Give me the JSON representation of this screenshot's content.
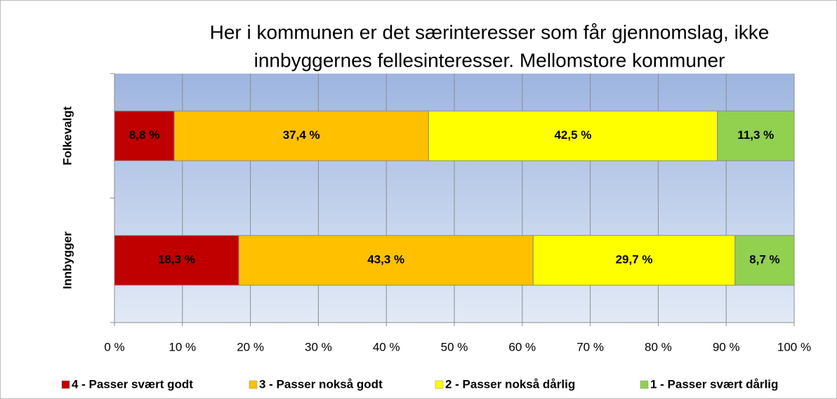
{
  "chart_data": {
    "type": "stacked-barh",
    "title": [
      "Her i kommunen er det særinteresser som får gjennomslag, ikke",
      "innbyggernes fellesinteresser. Mellomstore kommuner"
    ],
    "categories": [
      "Folkevalgt",
      "Innbygger"
    ],
    "series": [
      {
        "name": "4 - Passer svært godt",
        "color": "#c00000",
        "values": [
          8.8,
          18.3
        ],
        "value_labels": [
          "8,8 %",
          "18,3 %"
        ]
      },
      {
        "name": "3 - Passer nokså godt",
        "color": "#ffc000",
        "values": [
          37.4,
          43.3
        ],
        "value_labels": [
          "37,4 %",
          "43,3 %"
        ]
      },
      {
        "name": "2 - Passer nokså dårlig",
        "color": "#ffff00",
        "values": [
          42.5,
          29.7
        ],
        "value_labels": [
          "42,5 %",
          "29,7 %"
        ]
      },
      {
        "name": "1 - Passer svært dårlig",
        "color": "#92d050",
        "values": [
          11.3,
          8.7
        ],
        "value_labels": [
          "11,3 %",
          "8,7 %"
        ]
      }
    ],
    "xlim": [
      0,
      100
    ],
    "xticks": [
      {
        "value": 0,
        "label": "0 %"
      },
      {
        "value": 10,
        "label": "10 %"
      },
      {
        "value": 20,
        "label": "20 %"
      },
      {
        "value": 30,
        "label": "30 %"
      },
      {
        "value": 40,
        "label": "40 %"
      },
      {
        "value": 50,
        "label": "50 %"
      },
      {
        "value": 60,
        "label": "60 %"
      },
      {
        "value": 70,
        "label": "70 %"
      },
      {
        "value": 80,
        "label": "80 %"
      },
      {
        "value": 90,
        "label": "90 %"
      },
      {
        "value": 100,
        "label": "100 %"
      }
    ],
    "grid": true,
    "legend": "bottom"
  }
}
